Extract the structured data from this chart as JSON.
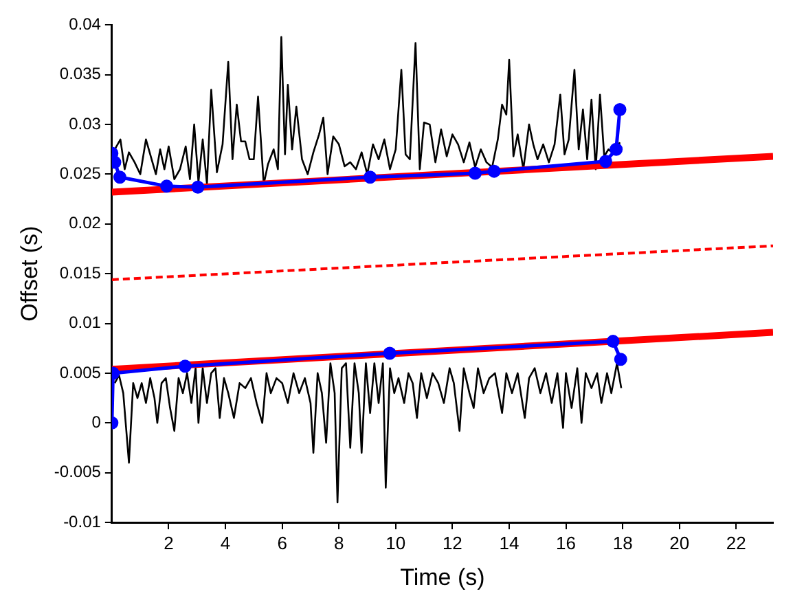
{
  "chart_data": {
    "type": "line",
    "xlabel": "Time (s)",
    "ylabel": "Offset (s)",
    "xlim": [
      0,
      23.3
    ],
    "xticks": [
      2,
      4,
      6,
      8,
      10,
      12,
      14,
      16,
      18,
      20,
      22
    ],
    "ylim": [
      -0.01,
      0.04
    ],
    "yticks": [
      -0.01,
      -0.005,
      0,
      0.005,
      0.01,
      0.015,
      0.02,
      0.025,
      0.03,
      0.035,
      0.04
    ],
    "grid": false,
    "legend": false,
    "series": [
      {
        "color": "#000000",
        "marker": "none",
        "x": [
          0.1,
          0.3,
          0.45,
          0.6,
          0.8,
          1.0,
          1.2,
          1.4,
          1.55,
          1.7,
          1.85,
          2.0,
          2.2,
          2.4,
          2.6,
          2.75,
          2.9,
          3.05,
          3.2,
          3.35,
          3.5,
          3.7,
          3.9,
          4.1,
          4.25,
          4.4,
          4.55,
          4.7,
          4.85,
          5.0,
          5.15,
          5.35,
          5.5,
          5.7,
          5.85,
          5.97,
          6.1,
          6.2,
          6.35,
          6.5,
          6.7,
          6.9,
          7.1,
          7.3,
          7.45,
          7.6,
          7.8,
          8.0,
          8.2,
          8.4,
          8.6,
          8.8,
          9.0,
          9.2,
          9.4,
          9.6,
          9.8,
          10.0,
          10.2,
          10.35,
          10.5,
          10.7,
          10.85,
          11.0,
          11.2,
          11.4,
          11.6,
          11.8,
          12.0,
          12.2,
          12.4,
          12.6,
          12.8,
          13.0,
          13.2,
          13.4,
          13.6,
          13.75,
          13.9,
          14.0,
          14.15,
          14.3,
          14.5,
          14.7,
          14.85,
          15.0,
          15.2,
          15.4,
          15.6,
          15.8,
          15.95,
          16.1,
          16.3,
          16.45,
          16.6,
          16.75,
          16.9,
          17.05,
          17.2,
          17.35,
          17.5,
          17.7,
          17.9
        ],
        "values": [
          0.0275,
          0.0285,
          0.0255,
          0.0272,
          0.0262,
          0.025,
          0.0285,
          0.0265,
          0.025,
          0.0275,
          0.0255,
          0.0278,
          0.0245,
          0.0255,
          0.0278,
          0.0245,
          0.03,
          0.0242,
          0.0285,
          0.024,
          0.0335,
          0.0252,
          0.028,
          0.0363,
          0.0265,
          0.032,
          0.0283,
          0.0283,
          0.0265,
          0.0265,
          0.0328,
          0.024,
          0.026,
          0.0275,
          0.0255,
          0.0388,
          0.027,
          0.034,
          0.0275,
          0.0318,
          0.0265,
          0.025,
          0.0272,
          0.029,
          0.0307,
          0.025,
          0.0288,
          0.028,
          0.0258,
          0.0262,
          0.0255,
          0.0272,
          0.025,
          0.028,
          0.0265,
          0.0285,
          0.0255,
          0.0275,
          0.0355,
          0.027,
          0.0265,
          0.0382,
          0.0255,
          0.0302,
          0.03,
          0.0262,
          0.0295,
          0.0268,
          0.029,
          0.028,
          0.0262,
          0.0282,
          0.0257,
          0.0275,
          0.0262,
          0.0257,
          0.0285,
          0.032,
          0.031,
          0.0365,
          0.0268,
          0.029,
          0.0255,
          0.03,
          0.028,
          0.0265,
          0.028,
          0.0262,
          0.028,
          0.033,
          0.027,
          0.0285,
          0.0355,
          0.0275,
          0.0315,
          0.0265,
          0.0325,
          0.0255,
          0.033,
          0.0268,
          0.0275,
          0.027,
          0.0282
        ]
      },
      {
        "color": "#000000",
        "marker": "none",
        "x": [
          0.1,
          0.25,
          0.4,
          0.6,
          0.75,
          0.9,
          1.05,
          1.2,
          1.35,
          1.5,
          1.6,
          1.75,
          1.9,
          2.05,
          2.2,
          2.35,
          2.5,
          2.65,
          2.8,
          2.95,
          3.05,
          3.2,
          3.35,
          3.5,
          3.65,
          3.8,
          3.95,
          4.1,
          4.3,
          4.5,
          4.7,
          4.9,
          5.1,
          5.3,
          5.45,
          5.6,
          5.8,
          6.0,
          6.2,
          6.4,
          6.6,
          6.8,
          7.0,
          7.1,
          7.25,
          7.4,
          7.55,
          7.7,
          7.85,
          7.95,
          8.1,
          8.25,
          8.4,
          8.55,
          8.7,
          8.8,
          8.95,
          9.1,
          9.25,
          9.4,
          9.55,
          9.65,
          9.8,
          9.95,
          10.1,
          10.3,
          10.45,
          10.6,
          10.75,
          10.9,
          11.1,
          11.3,
          11.5,
          11.7,
          11.9,
          12.05,
          12.25,
          12.4,
          12.6,
          12.75,
          12.9,
          13.1,
          13.3,
          13.5,
          13.75,
          13.9,
          14.1,
          14.3,
          14.55,
          14.7,
          14.9,
          15.1,
          15.3,
          15.5,
          15.7,
          15.9,
          16.0,
          16.2,
          16.4,
          16.55,
          16.7,
          16.9,
          17.1,
          17.25,
          17.45,
          17.6,
          17.8,
          17.95
        ],
        "values": [
          0.004,
          0.0048,
          0.003,
          -0.004,
          0.004,
          0.0025,
          0.004,
          0.002,
          0.0045,
          0.0025,
          0.0,
          0.004,
          0.0045,
          0.0015,
          -0.0008,
          0.0045,
          0.003,
          0.005,
          0.002,
          0.0055,
          0.0,
          0.0055,
          0.002,
          0.005,
          0.0055,
          0.0005,
          0.0045,
          0.003,
          0.0005,
          0.004,
          0.0035,
          0.0045,
          0.002,
          0.0,
          0.005,
          0.003,
          0.0045,
          0.004,
          0.002,
          0.005,
          0.003,
          0.0045,
          0.002,
          -0.003,
          0.005,
          0.003,
          -0.002,
          0.006,
          0.003,
          -0.008,
          0.0055,
          0.006,
          -0.0025,
          0.006,
          0.003,
          -0.003,
          0.006,
          0.001,
          0.006,
          0.002,
          0.006,
          -0.0065,
          0.0055,
          0.003,
          0.0045,
          0.002,
          0.005,
          0.004,
          0.0005,
          0.005,
          0.0025,
          0.005,
          0.004,
          0.002,
          0.0055,
          0.004,
          -0.0008,
          0.0055,
          0.003,
          0.0015,
          0.0055,
          0.003,
          0.0045,
          0.005,
          0.001,
          0.005,
          0.003,
          0.005,
          0.0005,
          0.0045,
          0.0055,
          0.003,
          0.005,
          0.002,
          0.005,
          -0.0005,
          0.005,
          0.0015,
          0.0055,
          0.0,
          0.005,
          0.0035,
          0.005,
          0.002,
          0.005,
          0.003,
          0.006,
          0.0035
        ]
      },
      {
        "color": "#ff0000",
        "marker": "none",
        "x": [
          0,
          23.3
        ],
        "values": [
          0.0232,
          0.0268
        ]
      },
      {
        "color": "#ff0000",
        "marker": "none",
        "line_style": "dashed",
        "x": [
          0,
          23.3
        ],
        "values": [
          0.0144,
          0.0178
        ]
      },
      {
        "color": "#ff0000",
        "marker": "none",
        "x": [
          0,
          23.3
        ],
        "values": [
          0.0054,
          0.0091
        ]
      },
      {
        "color": "#0000ff",
        "marker": "circle",
        "x": [
          0,
          0.1,
          0.28,
          1.93,
          3.03,
          9.1,
          12.8,
          13.47,
          17.4,
          17.77,
          17.9
        ],
        "values": [
          0.0271,
          0.0262,
          0.0247,
          0.0238,
          0.0237,
          0.0247,
          0.0251,
          0.0253,
          0.0263,
          0.0275,
          0.0315
        ]
      },
      {
        "color": "#0000ff",
        "marker": "circle",
        "x": [
          0,
          0.04,
          2.58,
          9.79,
          17.66,
          17.93
        ],
        "values": [
          0,
          0.005,
          0.0057,
          0.007,
          0.0082,
          0.0064
        ]
      }
    ]
  }
}
